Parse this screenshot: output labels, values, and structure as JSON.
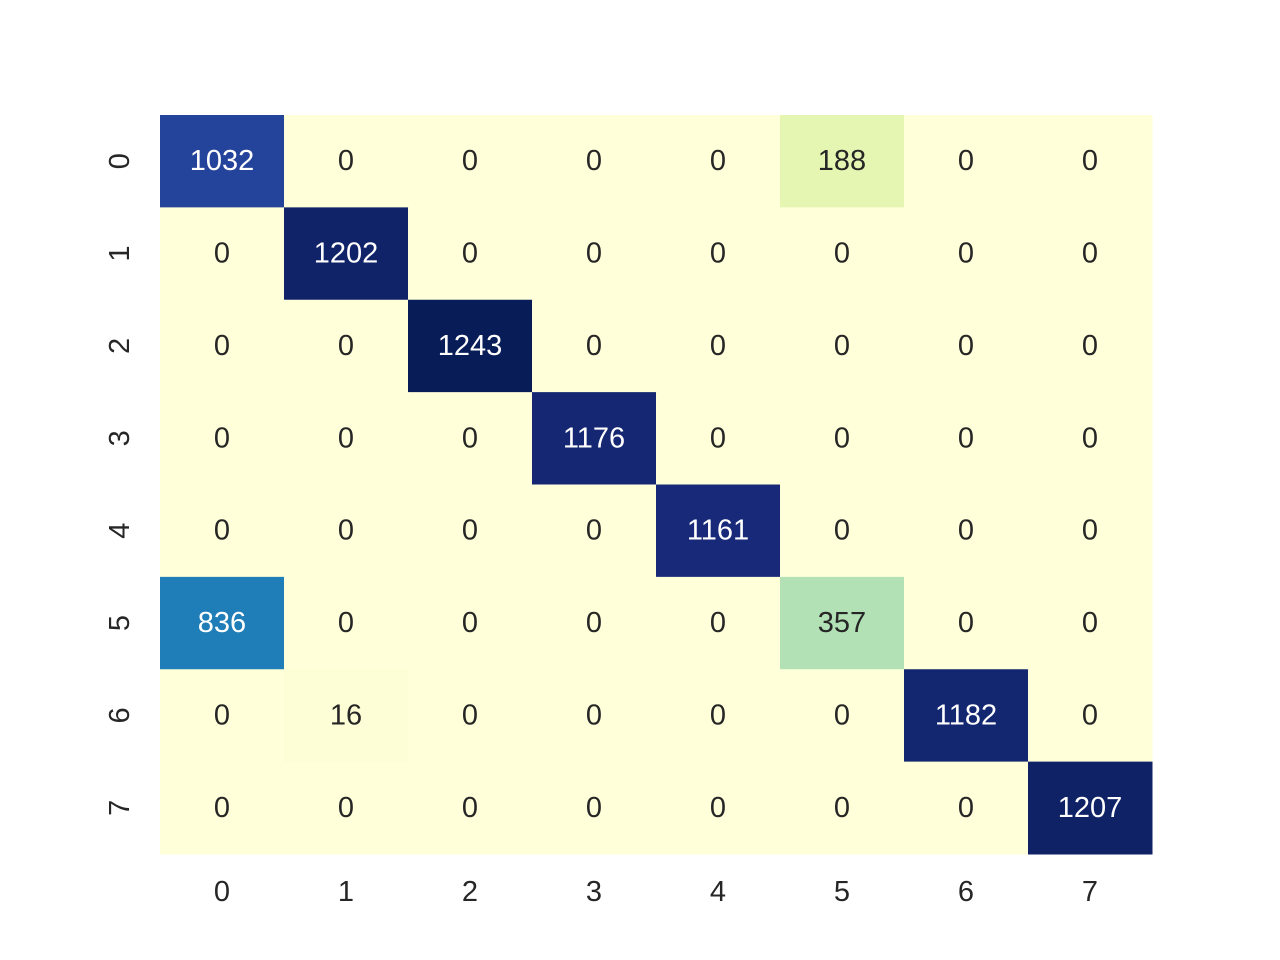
{
  "chart_data": {
    "type": "heatmap",
    "title": "",
    "xlabel": "",
    "ylabel": "",
    "x_categories": [
      "0",
      "1",
      "2",
      "3",
      "4",
      "5",
      "6",
      "7"
    ],
    "y_categories": [
      "0",
      "1",
      "2",
      "3",
      "4",
      "5",
      "6",
      "7"
    ],
    "values": [
      [
        1032,
        0,
        0,
        0,
        0,
        188,
        0,
        0
      ],
      [
        0,
        1202,
        0,
        0,
        0,
        0,
        0,
        0
      ],
      [
        0,
        0,
        1243,
        0,
        0,
        0,
        0,
        0
      ],
      [
        0,
        0,
        0,
        1176,
        0,
        0,
        0,
        0
      ],
      [
        0,
        0,
        0,
        0,
        1161,
        0,
        0,
        0
      ],
      [
        836,
        0,
        0,
        0,
        0,
        357,
        0,
        0
      ],
      [
        0,
        16,
        0,
        0,
        0,
        0,
        1182,
        0
      ],
      [
        0,
        0,
        0,
        0,
        0,
        0,
        0,
        1207
      ]
    ],
    "colormap": "YlGnBu",
    "vmin": 0,
    "vmax": 1243,
    "annotations": true,
    "colorbar": false,
    "grid": false
  }
}
